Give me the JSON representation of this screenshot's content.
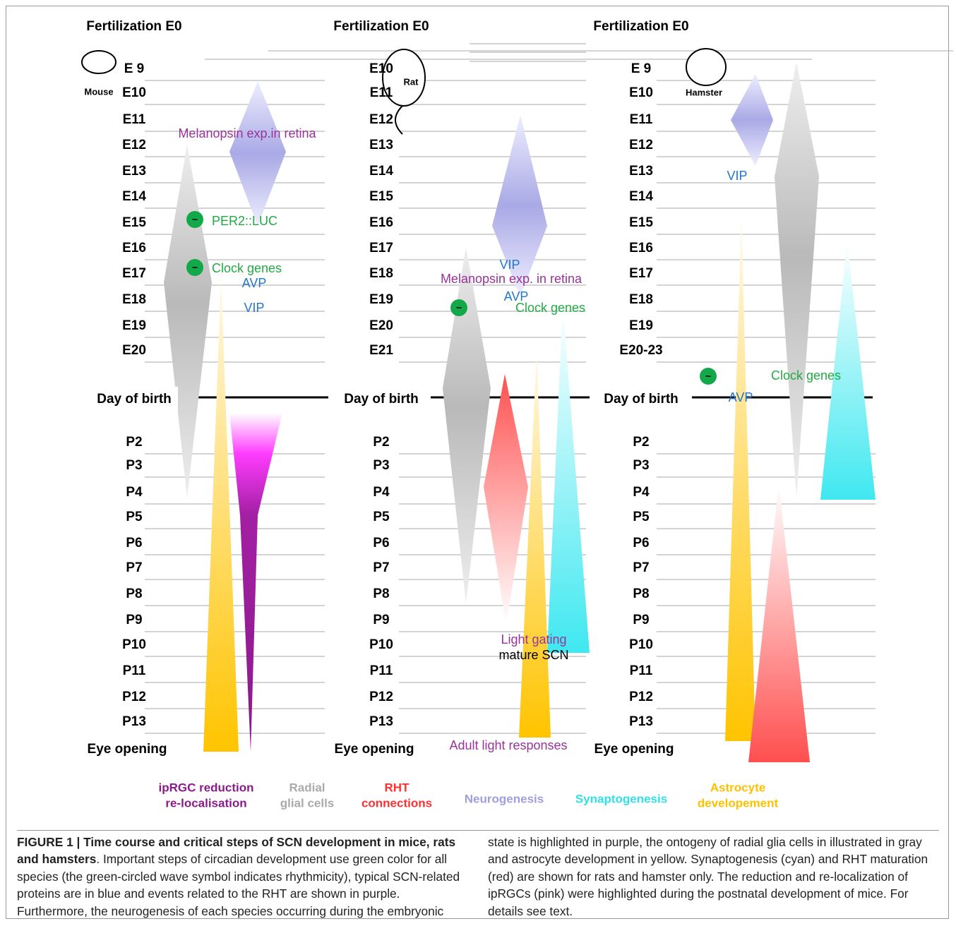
{
  "columns": [
    {
      "header": "Fertilization E0",
      "animal": "Mouse",
      "stages": [
        "E 9",
        "E10",
        "E11",
        "E12",
        "E13",
        "E14",
        "E15",
        "E16",
        "E17",
        "E18",
        "E19",
        "E20",
        "P2",
        "P3",
        "P4",
        "P5",
        "P6",
        "P7",
        "P8",
        "P9",
        "P10",
        "P11",
        "P12",
        "P13"
      ],
      "birth": "Day of birth",
      "eye_opening": "Eye opening",
      "annotations": [
        "Melanopsin exp.in retina",
        "PER2::LUC",
        "Clock genes",
        "AVP",
        "VIP"
      ]
    },
    {
      "header": "Fertilization E0",
      "animal": "Rat",
      "stages": [
        "E10",
        "E11",
        "E12",
        "E13",
        "E14",
        "E15",
        "E16",
        "E17",
        "E18",
        "E19",
        "E20",
        "E21",
        "P2",
        "P3",
        "P4",
        "P5",
        "P6",
        "P7",
        "P8",
        "P9",
        "P10",
        "P11",
        "P12",
        "P13"
      ],
      "birth": "Day of birth",
      "eye_opening": "Eye opening",
      "annotations": [
        "VIP",
        "Melanopsin exp. in retina",
        "AVP",
        "Clock genes",
        "Light gating",
        "mature SCN",
        "Adult light responses"
      ]
    },
    {
      "header": "Fertilization E0",
      "animal": "Hamster",
      "stages": [
        "E 9",
        "E10",
        "E11",
        "E12",
        "E13",
        "E14",
        "E15",
        "E16",
        "E17",
        "E18",
        "E19",
        "E20-23",
        "P2",
        "P3",
        "P4",
        "P5",
        "P6",
        "P7",
        "P8",
        "P9",
        "P10",
        "P11",
        "P12",
        "P13"
      ],
      "birth": "Day of birth",
      "eye_opening": "Eye opening",
      "annotations": [
        "VIP",
        "Clock genes",
        "AVP"
      ]
    }
  ],
  "legend": [
    {
      "lines": [
        "ipRGC reduction",
        "re-localisation"
      ]
    },
    {
      "lines": [
        "Radial",
        "glial cells"
      ]
    },
    {
      "lines": [
        "RHT",
        "connections"
      ]
    },
    {
      "lines": [
        "Neurogenesis"
      ]
    },
    {
      "lines": [
        "Synaptogenesis"
      ]
    },
    {
      "lines": [
        "Astrocyte",
        "developement"
      ]
    }
  ],
  "caption": {
    "label": "FIGURE 1 | Time course and critical steps of SCN development in mice, rats and hamsters",
    "text": ". Important steps of circadian development use green color for all species (the green-circled wave symbol indicates rhythmicity), typical SCN-related proteins are in blue and events related to the RHT are shown in purple. Furthermore, the neurogenesis of each species occurring during the embryonic state is highlighted in purple, the ontogeny of radial glia cells in illustrated in gray and astrocyte development in yellow. Synaptogenesis (cyan) and RHT maturation (red) are shown for rats and hamster only. The reduction and re-localization of ipRGCs (pink) were highlighted during the postnatal development of mice. For details see text."
  }
}
